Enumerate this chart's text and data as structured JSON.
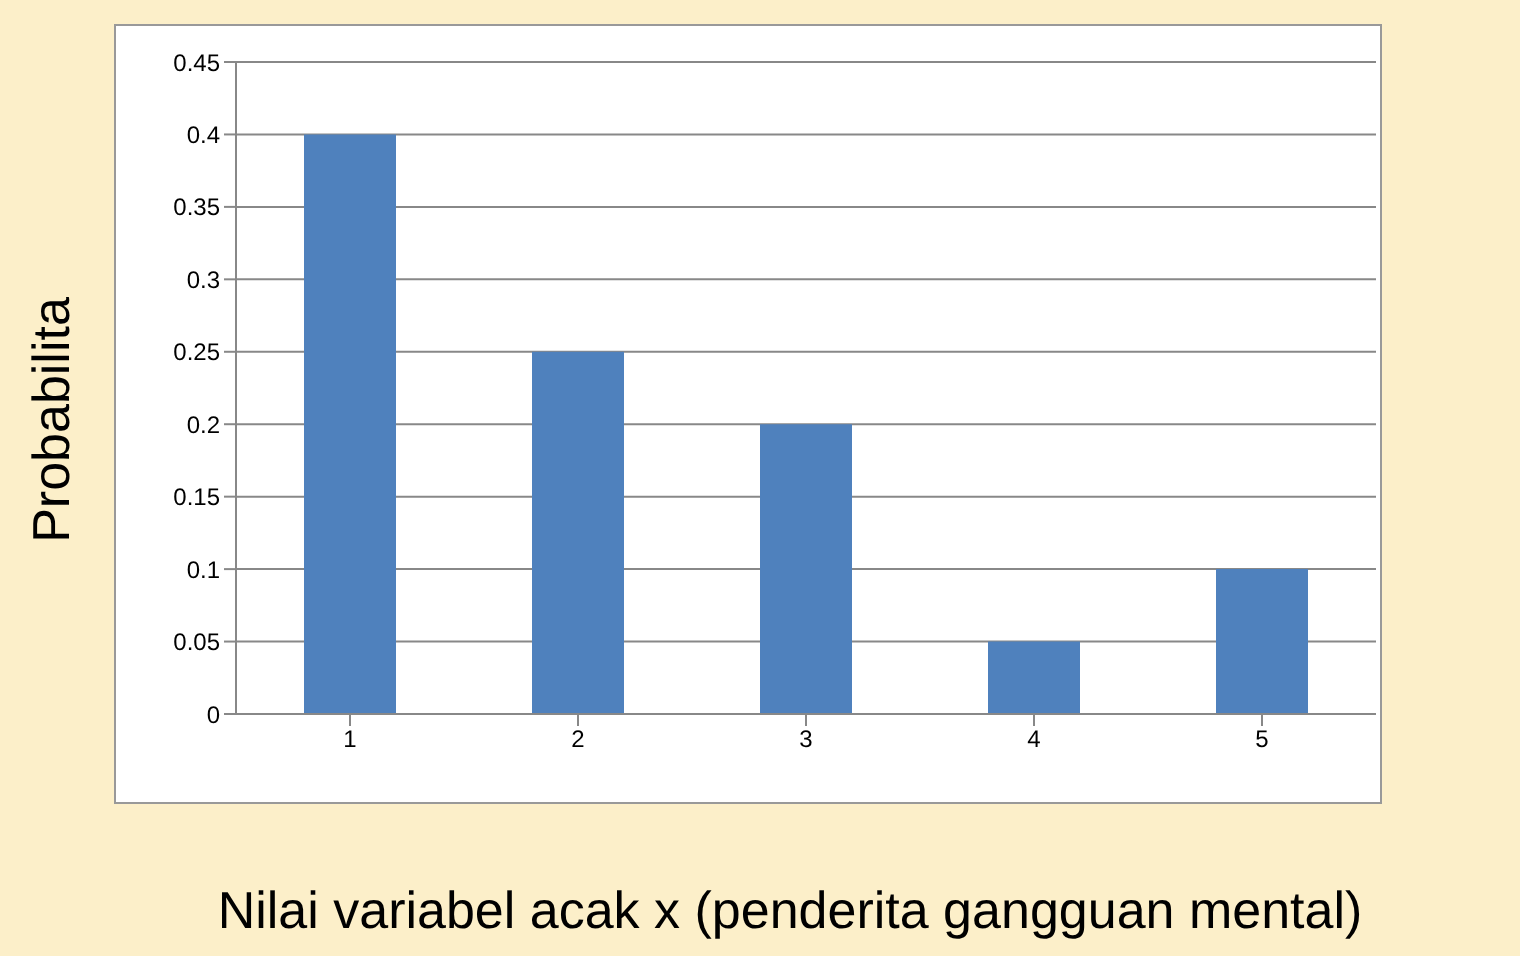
{
  "chart_data": {
    "type": "bar",
    "xlabel": "Nilai variabel acak x (penderita gangguan mental)",
    "ylabel": "Probabilita",
    "categories": [
      "1",
      "2",
      "3",
      "4",
      "5"
    ],
    "values": [
      0.4,
      0.25,
      0.2,
      0.05,
      0.1
    ],
    "color": "#4f81bd",
    "ylim": [
      0,
      0.45
    ],
    "yticks": [
      0,
      0.05,
      0.1,
      0.15,
      0.2,
      0.25,
      0.3,
      0.35,
      0.4,
      0.45
    ],
    "grid": "y",
    "legend": false
  }
}
